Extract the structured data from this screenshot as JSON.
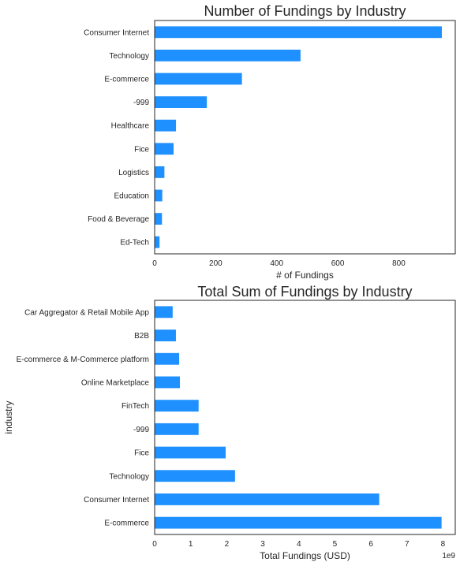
{
  "chart_data": [
    {
      "type": "bar",
      "orientation": "horizontal",
      "title": "Number of Fundings by Industry",
      "xlabel": "# of Fundings",
      "ylabel": "",
      "categories": [
        "Consumer Internet",
        "Technology",
        "E-commerce",
        "-999",
        "Healthcare",
        "Fice",
        "Logistics",
        "Education",
        "Food & Beverage",
        "Ed-Tech"
      ],
      "values": [
        941,
        478,
        286,
        171,
        70,
        62,
        32,
        25,
        24,
        16
      ],
      "xlim": [
        0,
        985
      ],
      "xticks": [
        "0",
        "200",
        "400",
        "600",
        "800"
      ],
      "xtick_values": [
        0,
        200,
        400,
        600,
        800
      ],
      "offset_label": "",
      "bar_color": "#1e90ff",
      "grid": false
    },
    {
      "type": "bar",
      "orientation": "horizontal",
      "title": "Total Sum of Fundings by Industry",
      "xlabel": "Total Fundings (USD)",
      "ylabel": "industry",
      "categories": [
        "Car Aggregator & Retail Mobile App",
        "B2B",
        "E-commerce & M-Commerce platform",
        "Online Marketplace",
        "FinTech",
        "-999",
        "Fice",
        "Technology",
        "Consumer Internet",
        "E-commerce"
      ],
      "values": [
        500000000,
        590000000,
        680000000,
        700000000,
        1220000000,
        1220000000,
        1970000000,
        2230000000,
        6230000000,
        7960000000
      ],
      "xlim": [
        0,
        8340000000
      ],
      "xticks": [
        "0",
        "1",
        "2",
        "3",
        "4",
        "5",
        "6",
        "7",
        "8"
      ],
      "xtick_values": [
        0,
        1000000000,
        2000000000,
        3000000000,
        4000000000,
        5000000000,
        6000000000,
        7000000000,
        8000000000
      ],
      "offset_label": "1e9",
      "bar_color": "#1e90ff",
      "grid": false
    }
  ]
}
